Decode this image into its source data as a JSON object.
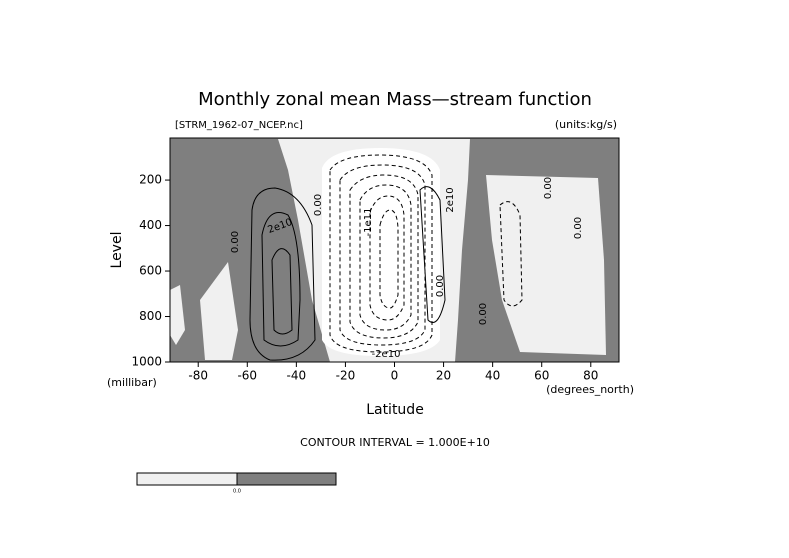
{
  "chart_data": {
    "type": "contour",
    "title": "Monthly zonal mean Mass—stream function",
    "subtitle_left": "[STRM_1962-07_NCEP.nc]",
    "subtitle_right": "(units:kg/s)",
    "x_label": "Latitude",
    "x_unit": "(degrees_north)",
    "y_label": "Level",
    "y_unit": "(millibar)",
    "xlim": [
      -91.5,
      91.5
    ],
    "xticks": [
      -80,
      -60,
      -40,
      -20,
      0,
      20,
      40,
      60,
      80
    ],
    "ylim": [
      1000,
      15
    ],
    "yticks": [
      1000,
      800,
      600,
      400,
      200
    ],
    "contour_labels": [
      "0.00",
      "2e10",
      "0.00",
      "-1e11",
      "2e10",
      "0.00",
      "0.00",
      "0.00",
      "0.00",
      "-2e10"
    ],
    "contour_interval": "CONTOUR INTERVAL = 1.000E+10",
    "colorbar_labels": [
      "0.0"
    ],
    "colors": {
      "negative": "#f0f0f0",
      "positive": "#7f7f7f"
    }
  }
}
